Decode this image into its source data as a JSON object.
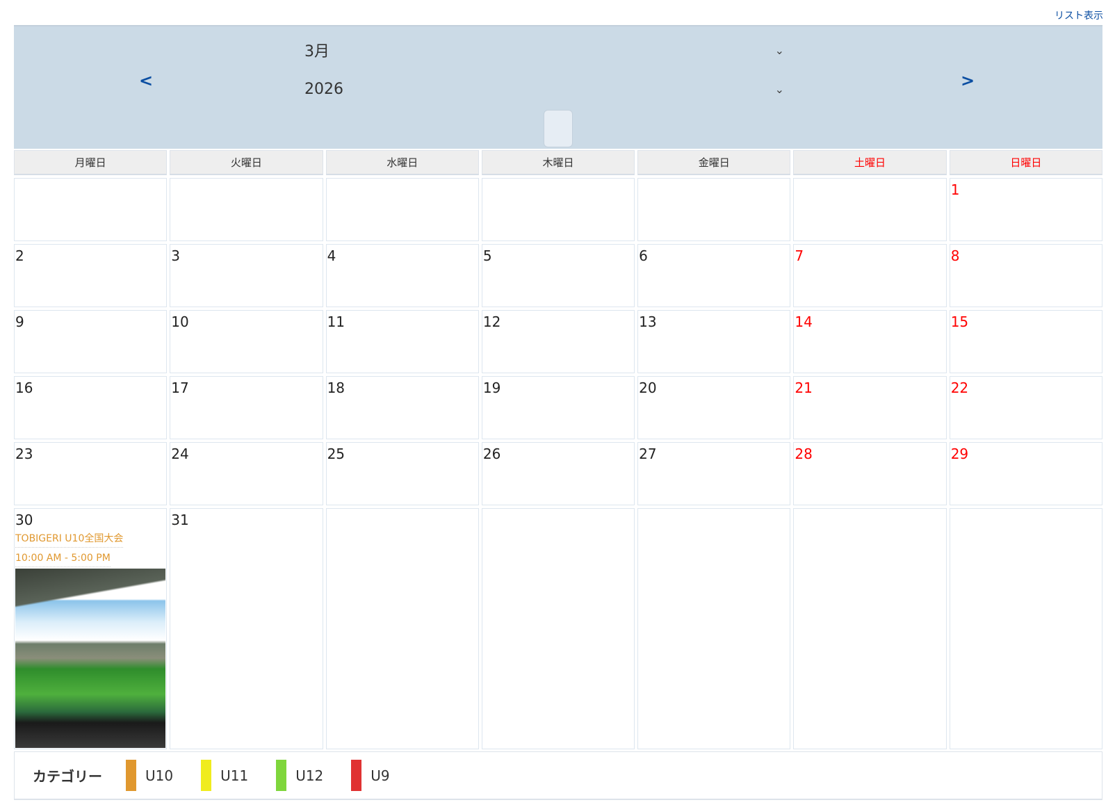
{
  "list_view_link": "リスト表示",
  "header": {
    "month": "3月",
    "year": "2026",
    "prev": "<",
    "next": ">"
  },
  "weekdays": [
    {
      "label": "月曜日",
      "red": false
    },
    {
      "label": "火曜日",
      "red": false
    },
    {
      "label": "水曜日",
      "red": false
    },
    {
      "label": "木曜日",
      "red": false
    },
    {
      "label": "金曜日",
      "red": false
    },
    {
      "label": "土曜日",
      "red": true
    },
    {
      "label": "日曜日",
      "red": true
    }
  ],
  "weeks": [
    [
      "",
      "",
      "",
      "",
      "",
      "",
      "1"
    ],
    [
      "2",
      "3",
      "4",
      "5",
      "6",
      "7",
      "8"
    ],
    [
      "9",
      "10",
      "11",
      "12",
      "13",
      "14",
      "15"
    ],
    [
      "16",
      "17",
      "18",
      "19",
      "20",
      "21",
      "22"
    ],
    [
      "23",
      "24",
      "25",
      "26",
      "27",
      "28",
      "29"
    ],
    [
      "30",
      "31",
      "",
      "",
      "",
      "",
      ""
    ]
  ],
  "event": {
    "day": "30",
    "title": "TOBIGERI U10全国大会",
    "time": "10:00 AM - 5:00 PM",
    "color": "#e0982f",
    "image": "stadium-photo"
  },
  "legend": {
    "title": "カテゴリー",
    "items": [
      {
        "label": "U10",
        "color": "#e0982f"
      },
      {
        "label": "U11",
        "color": "#f0ec1e"
      },
      {
        "label": "U12",
        "color": "#7fd63c"
      },
      {
        "label": "U9",
        "color": "#e03232"
      }
    ]
  }
}
